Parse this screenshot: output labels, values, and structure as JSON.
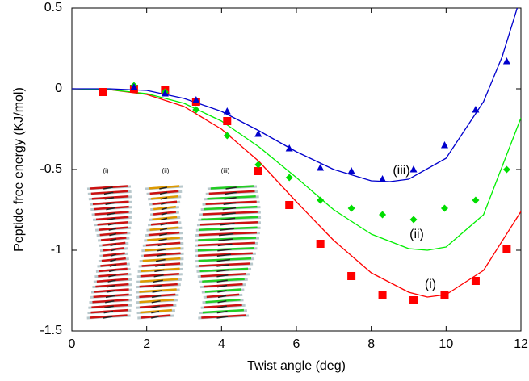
{
  "chart_data": {
    "type": "scatter",
    "xlabel": "Twist angle (deg)",
    "ylabel": "Peptide free energy (KJ/mol)",
    "xlim": [
      0,
      12
    ],
    "ylim": [
      -1.5,
      0.5
    ],
    "xticks": [
      0,
      2,
      4,
      6,
      8,
      10,
      12
    ],
    "yticks": [
      -1.5,
      -1,
      -0.5,
      0,
      0.5
    ],
    "series": [
      {
        "marker": "square",
        "color": "#ff0000",
        "x": [
          0.83,
          1.66,
          2.49,
          3.32,
          4.15,
          4.98,
          5.81,
          6.64,
          7.47,
          8.3,
          9.13,
          9.96,
          10.79,
          11.62
        ],
        "values": [
          -0.02,
          0.0,
          -0.01,
          -0.08,
          -0.2,
          -0.51,
          -0.72,
          -0.96,
          -1.16,
          -1.28,
          -1.31,
          -1.28,
          -1.19,
          -0.99
        ]
      },
      {
        "marker": "diamond",
        "color": "#00dd00",
        "x": [
          1.66,
          2.49,
          3.32,
          4.15,
          4.98,
          5.81,
          6.64,
          7.47,
          8.3,
          9.13,
          9.96,
          10.79,
          11.62
        ],
        "values": [
          0.02,
          -0.02,
          -0.13,
          -0.29,
          -0.47,
          -0.55,
          -0.69,
          -0.74,
          -0.78,
          -0.81,
          -0.74,
          -0.69,
          -0.5
        ]
      },
      {
        "marker": "triangle",
        "color": "#0000cc",
        "x": [
          1.66,
          2.49,
          3.32,
          4.15,
          4.98,
          5.81,
          6.64,
          7.47,
          8.3,
          9.13,
          9.96,
          10.79,
          11.62
        ],
        "values": [
          0.01,
          -0.03,
          -0.07,
          -0.14,
          -0.28,
          -0.37,
          -0.49,
          -0.51,
          -0.56,
          -0.5,
          -0.35,
          -0.13,
          0.17
        ]
      }
    ],
    "curves": [
      {
        "color": "#ff0000",
        "x": [
          0,
          1,
          2,
          3,
          4,
          5,
          6,
          7,
          8,
          9,
          9.5,
          10,
          11,
          12
        ],
        "values": [
          0,
          -0.005,
          -0.035,
          -0.11,
          -0.25,
          -0.45,
          -0.7,
          -0.94,
          -1.14,
          -1.26,
          -1.29,
          -1.275,
          -1.125,
          -0.76
        ]
      },
      {
        "color": "#00ee00",
        "x": [
          0,
          1,
          2,
          3,
          4,
          5,
          6,
          7,
          8,
          9,
          9.5,
          10,
          11,
          12
        ],
        "values": [
          0,
          -0.005,
          -0.03,
          -0.09,
          -0.2,
          -0.36,
          -0.55,
          -0.75,
          -0.9,
          -0.99,
          -1.0,
          -0.98,
          -0.78,
          -0.18
        ]
      },
      {
        "color": "#0000cc",
        "x": [
          0,
          1,
          2,
          3,
          4,
          5,
          6,
          7,
          8,
          8.5,
          9,
          10,
          11,
          11.5,
          11.9
        ],
        "values": [
          0,
          0,
          -0.01,
          -0.06,
          -0.14,
          -0.26,
          -0.39,
          -0.5,
          -0.57,
          -0.575,
          -0.56,
          -0.43,
          -0.08,
          0.2,
          0.5
        ]
      }
    ],
    "annotations": [
      "(i)",
      "(ii)",
      "(iii)"
    ],
    "inset_labels": [
      "(i)",
      "(ii)",
      "(iii)"
    ]
  }
}
